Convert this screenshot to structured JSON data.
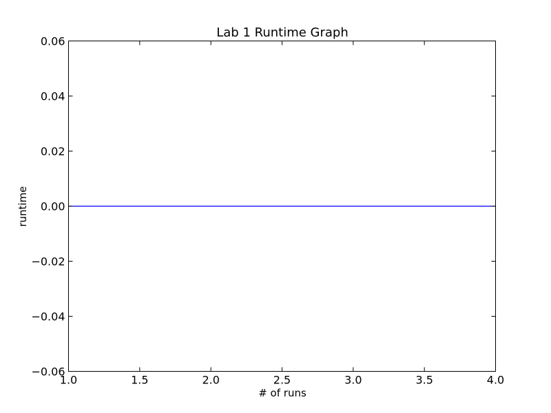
{
  "chart_data": {
    "type": "line",
    "title": "Lab 1 Runtime Graph",
    "xlabel": "# of runs",
    "ylabel": "runtime",
    "xlim": [
      1.0,
      4.0
    ],
    "ylim": [
      -0.06,
      0.06
    ],
    "xticks": [
      1.0,
      1.5,
      2.0,
      2.5,
      3.0,
      3.5,
      4.0
    ],
    "xtick_labels": [
      "1.0",
      "1.5",
      "2.0",
      "2.5",
      "3.0",
      "3.5",
      "4.0"
    ],
    "yticks": [
      -0.06,
      -0.04,
      -0.02,
      0.0,
      0.02,
      0.04,
      0.06
    ],
    "ytick_labels": [
      "−0.06",
      "−0.04",
      "−0.02",
      "0.00",
      "0.02",
      "0.04",
      "0.06"
    ],
    "grid": false,
    "series": [
      {
        "name": "runtime",
        "color": "#0000ff",
        "x": [
          1,
          2,
          3,
          4
        ],
        "y": [
          0.0,
          0.0,
          0.0,
          0.0
        ]
      }
    ]
  }
}
